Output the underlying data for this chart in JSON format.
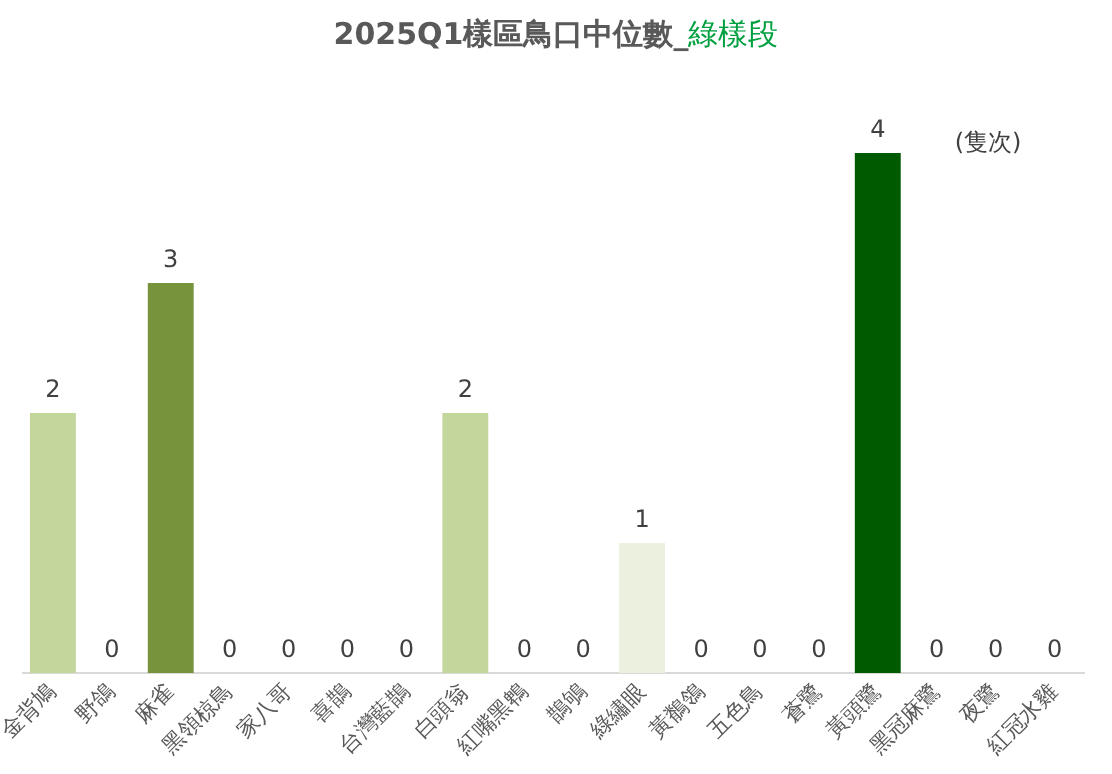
{
  "chart_data": {
    "type": "bar",
    "title": "2025Q1樣區鳥口中位數_綠樣段",
    "categories": [
      "金背鳩",
      "野鴿",
      "麻雀",
      "黑領椋鳥",
      "家八哥",
      "喜鵲",
      "台灣藍鵲",
      "白頭翁",
      "紅嘴黑鵯",
      "鵲鴝",
      "綠繡眼",
      "黃鶺鴒",
      "五色鳥",
      "蒼鷺",
      "黃頭鷺",
      "黑冠麻鷺",
      "夜鷺",
      "紅冠水雞"
    ],
    "values": [
      2,
      0,
      3,
      0,
      0,
      0,
      0,
      2,
      0,
      0,
      1,
      0,
      0,
      0,
      4,
      0,
      0,
      0
    ],
    "colors": [
      "#c3d69b",
      "#c3d69b",
      "#77933c",
      "#c3d69b",
      "#c3d69b",
      "#c3d69b",
      "#c3d69b",
      "#c3d69b",
      "#c3d69b",
      "#c3d69b",
      "#ebf1de",
      "#c3d69b",
      "#c3d69b",
      "#c3d69b",
      "#005a00",
      "#c3d69b",
      "#c3d69b",
      "#c3d69b"
    ],
    "data_labels": true,
    "grid": false,
    "legend": false,
    "annotations": [
      "(隻次)"
    ]
  }
}
